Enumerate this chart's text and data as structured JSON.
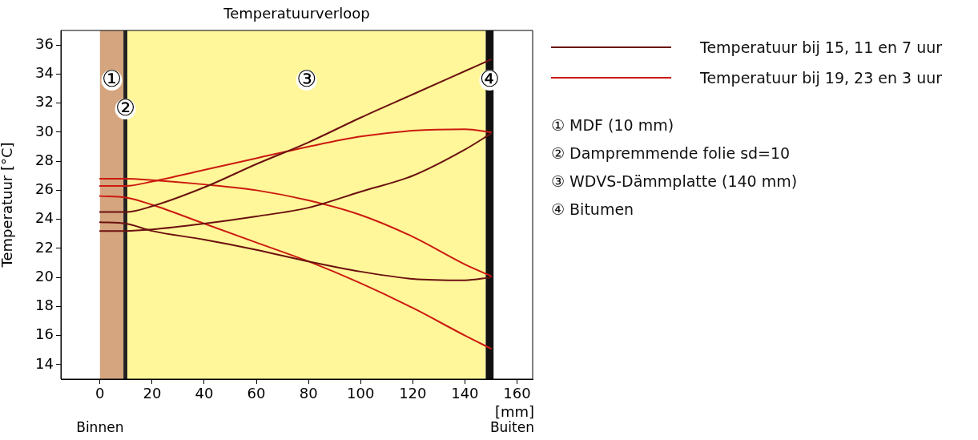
{
  "chart_data": {
    "type": "line",
    "title": "Temperatuurverloop",
    "ylabel": "Temperatuur [°C]",
    "xlabel": "[mm]",
    "x": [
      0,
      10,
      20,
      40,
      60,
      80,
      100,
      120,
      140,
      150
    ],
    "xlim": [
      -15,
      166
    ],
    "xticks": [
      0,
      20,
      40,
      60,
      80,
      100,
      120,
      140,
      160
    ],
    "ylim": [
      13,
      37
    ],
    "yticks": [
      14,
      16,
      18,
      20,
      22,
      24,
      26,
      28,
      30,
      32,
      34,
      36
    ],
    "grid": false,
    "legend": "right",
    "marker": "none",
    "line_style": "solid",
    "series": [
      {
        "name": "Temperatuur bij 15, 11 en 7 uur",
        "color": "#6b1010",
        "values": [
          24.5,
          24.5,
          24.9,
          26.2,
          27.8,
          29.3,
          31.0,
          32.6,
          34.2,
          35.0
        ]
      },
      {
        "color": "#6b1010",
        "values": [
          23.2,
          23.2,
          23.3,
          23.7,
          24.2,
          24.8,
          25.9,
          27.0,
          28.8,
          29.9
        ]
      },
      {
        "color": "#6b1010",
        "values": [
          23.8,
          23.7,
          23.2,
          22.6,
          21.9,
          21.1,
          20.4,
          19.9,
          19.8,
          20.0
        ]
      },
      {
        "name": "Temperatuur bij 19, 23 en 3 uur",
        "color": "#cc1a10",
        "values": [
          26.3,
          26.3,
          26.6,
          27.4,
          28.2,
          29.0,
          29.7,
          30.1,
          30.2,
          30.0
        ]
      },
      {
        "color": "#cc1a10",
        "values": [
          26.8,
          26.8,
          26.7,
          26.4,
          26.0,
          25.3,
          24.3,
          22.8,
          20.9,
          20.1
        ]
      },
      {
        "color": "#cc1a10",
        "values": [
          25.6,
          25.5,
          25.0,
          23.7,
          22.4,
          21.1,
          19.6,
          17.9,
          16.0,
          15.1
        ]
      }
    ],
    "bands": [
      {
        "axis": "x",
        "from": 0,
        "to": 9,
        "label": "①",
        "color": "#d4a57e"
      },
      {
        "axis": "x",
        "from": 9,
        "to": 10.5,
        "label": "②",
        "color": "#222222"
      },
      {
        "axis": "x",
        "from": 10.5,
        "to": 148,
        "label": "③",
        "color": "#fff799"
      },
      {
        "axis": "x",
        "from": 148,
        "to": 151,
        "label": "④",
        "color": "#111111"
      }
    ],
    "annotations": [
      "① MDF (10 mm)",
      "② Dampremmende folie sd=10",
      "③ WDVS-Dämmplatte (140 mm)",
      "④ Bitumen",
      "Binnen",
      "Buiten"
    ]
  }
}
